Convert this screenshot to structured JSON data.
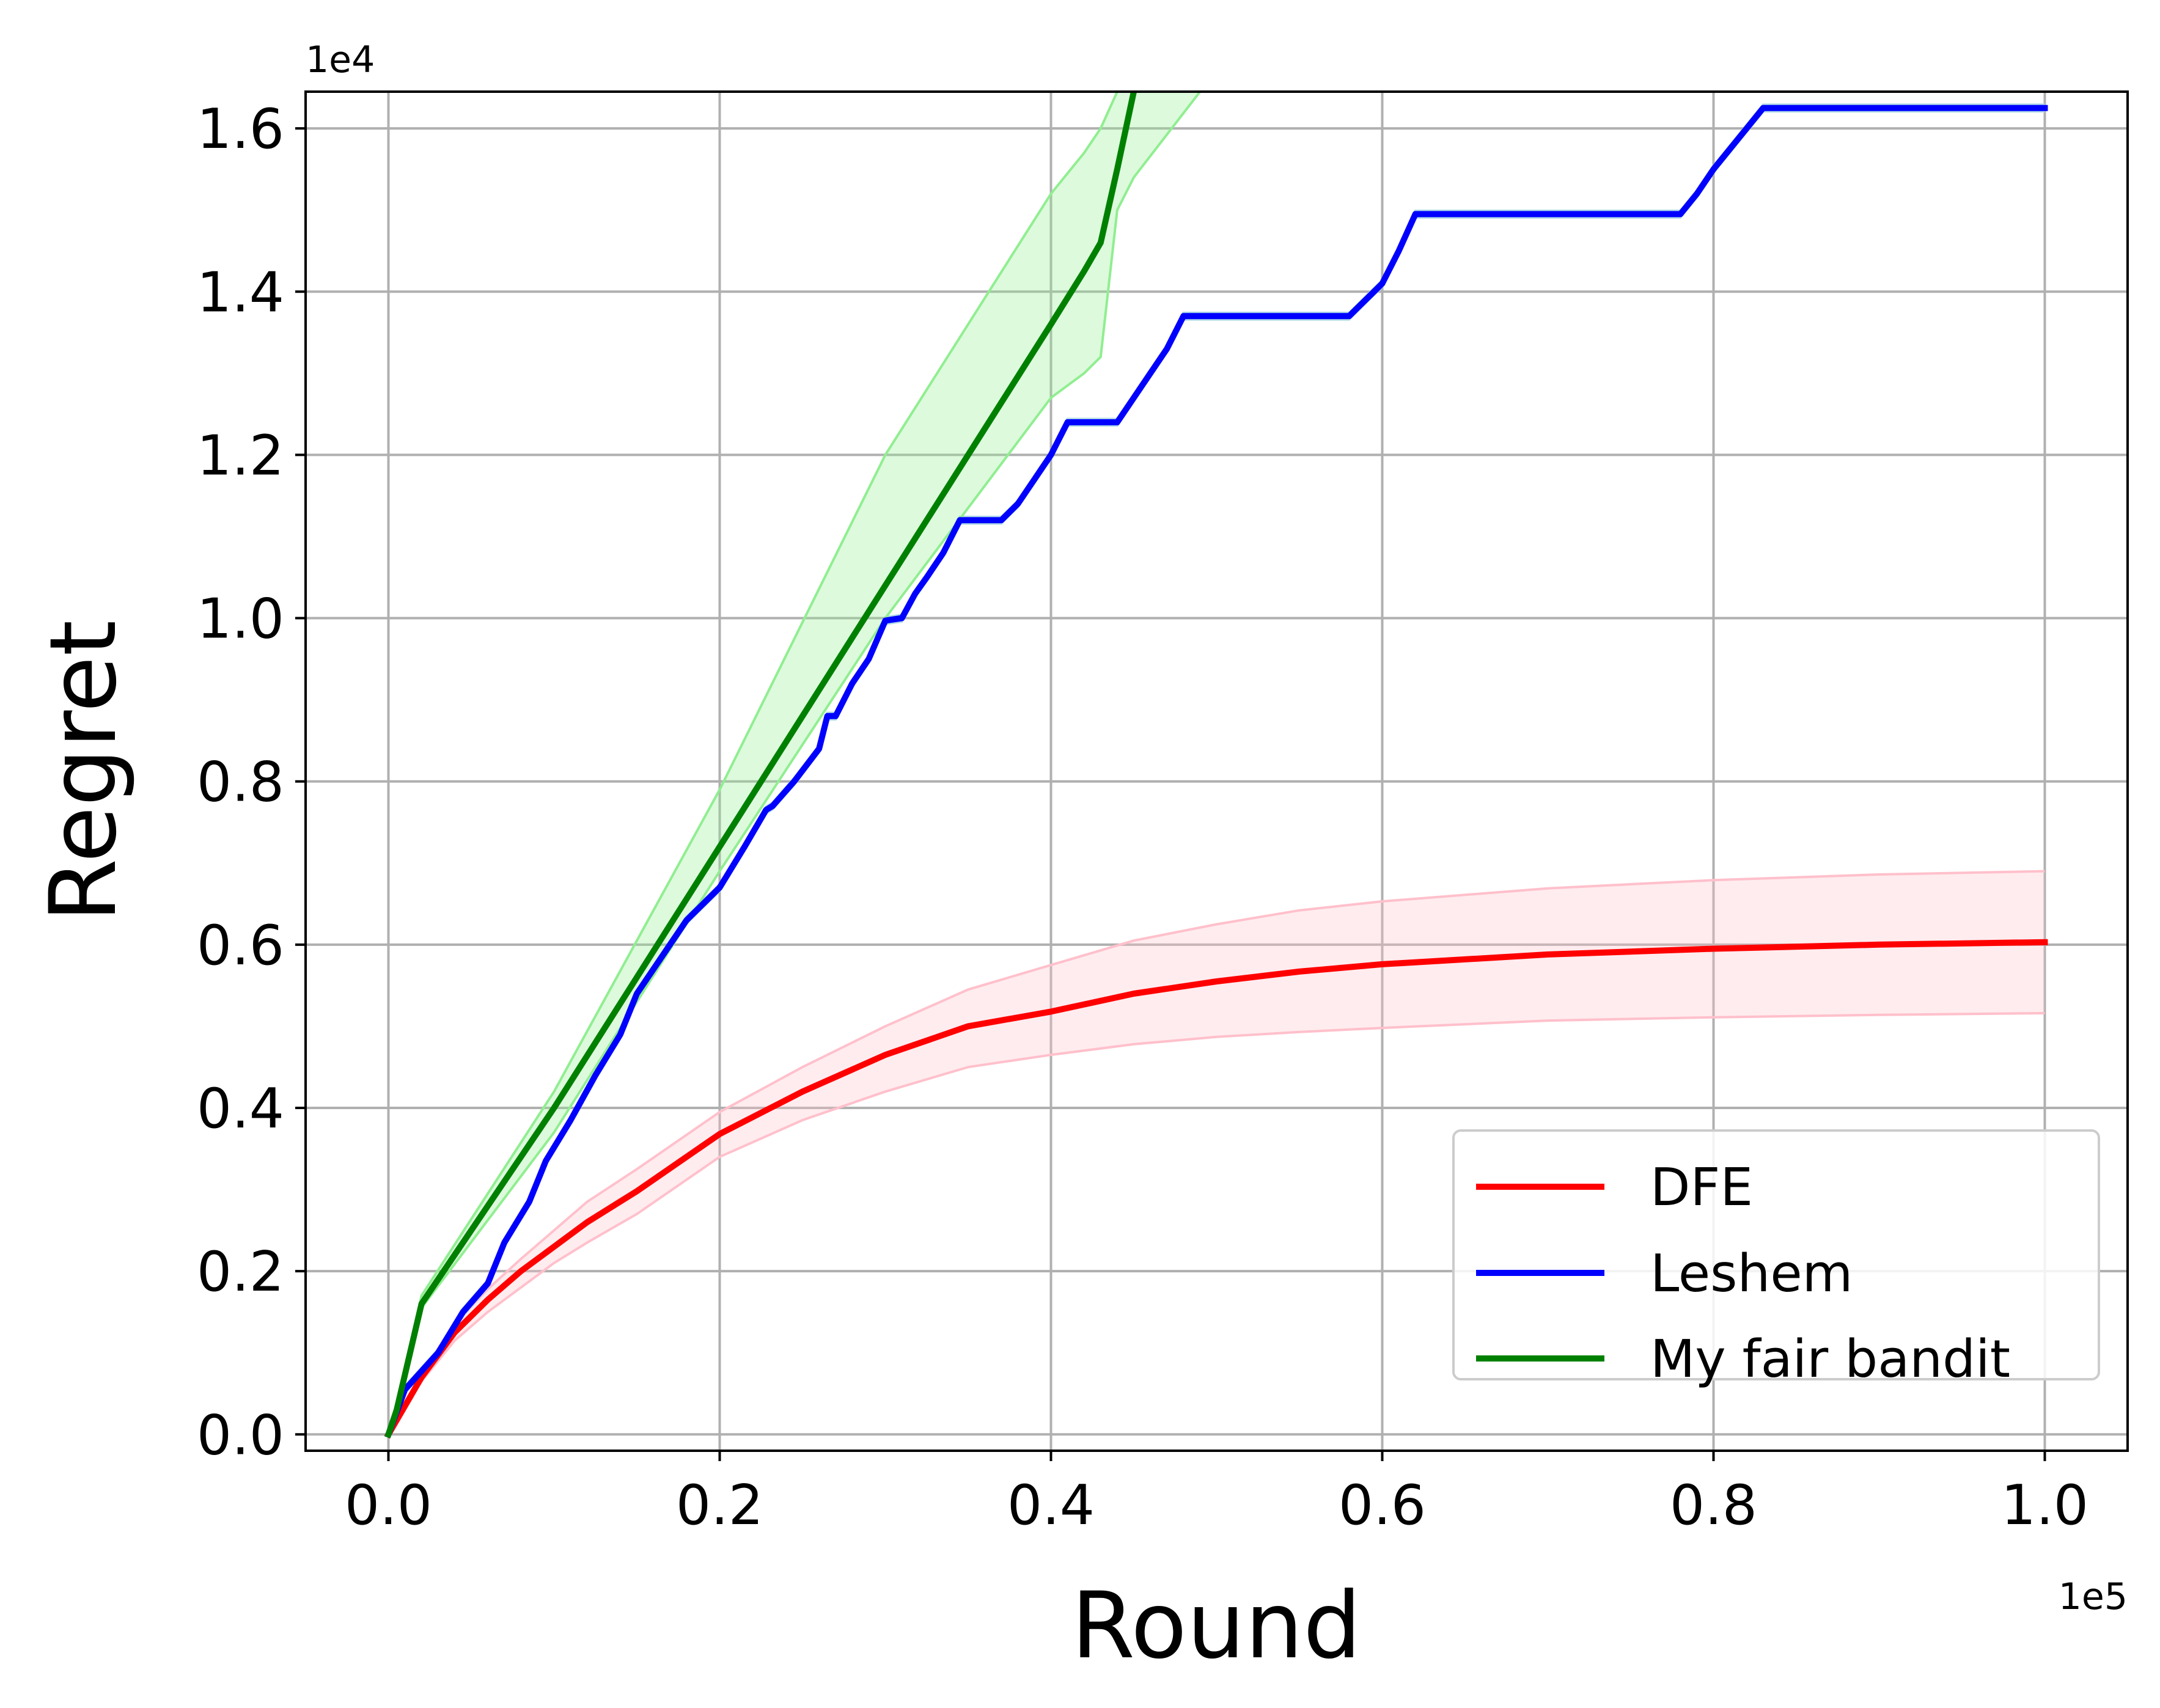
{
  "chart_data": {
    "type": "line",
    "title": "",
    "xlabel": "Round",
    "ylabel": "Regret",
    "x_multiplier_label": "1e5",
    "y_multiplier_label": "1e4",
    "xlim": [
      -0.05,
      1.05
    ],
    "ylim": [
      -0.02,
      1.645
    ],
    "xticks": [
      0.0,
      0.2,
      0.4,
      0.6,
      0.8,
      1.0
    ],
    "xtick_labels": [
      "0.0",
      "0.2",
      "0.4",
      "0.6",
      "0.8",
      "1.0"
    ],
    "yticks": [
      0.0,
      0.2,
      0.4,
      0.6,
      0.8,
      1.0,
      1.2,
      1.4,
      1.6
    ],
    "ytick_labels": [
      "0.0",
      "0.2",
      "0.4",
      "0.6",
      "0.8",
      "1.0",
      "1.2",
      "1.4",
      "1.6"
    ],
    "grid": true,
    "legend_position": "lower-right",
    "series": [
      {
        "name": "DFE",
        "color": "#ff0000",
        "band_fill": "#ffc0cb",
        "band_edge": "#ffc0cb",
        "x": [
          0.0,
          0.02,
          0.04,
          0.06,
          0.08,
          0.1,
          0.12,
          0.15,
          0.2,
          0.25,
          0.3,
          0.35,
          0.4,
          0.45,
          0.5,
          0.55,
          0.6,
          0.7,
          0.8,
          0.9,
          1.0
        ],
        "y": [
          0.0,
          0.07,
          0.125,
          0.165,
          0.2,
          0.23,
          0.26,
          0.298,
          0.368,
          0.42,
          0.465,
          0.5,
          0.518,
          0.54,
          0.555,
          0.567,
          0.576,
          0.588,
          0.595,
          0.6,
          0.603
        ],
        "lower": [
          0.0,
          0.065,
          0.115,
          0.15,
          0.18,
          0.21,
          0.235,
          0.27,
          0.34,
          0.385,
          0.42,
          0.45,
          0.465,
          0.478,
          0.487,
          0.493,
          0.498,
          0.507,
          0.511,
          0.514,
          0.516
        ],
        "upper": [
          0.0,
          0.075,
          0.135,
          0.178,
          0.215,
          0.25,
          0.285,
          0.325,
          0.395,
          0.45,
          0.5,
          0.545,
          0.575,
          0.605,
          0.625,
          0.642,
          0.653,
          0.669,
          0.679,
          0.686,
          0.69
        ]
      },
      {
        "name": "Leshem",
        "color": "#0000ff",
        "band_fill": "#add8e6",
        "band_edge": "#add8e6",
        "x": [
          0.0,
          0.01,
          0.03,
          0.045,
          0.06,
          0.07,
          0.085,
          0.095,
          0.11,
          0.125,
          0.14,
          0.15,
          0.16,
          0.17,
          0.18,
          0.19,
          0.2,
          0.215,
          0.228,
          0.232,
          0.245,
          0.26,
          0.265,
          0.27,
          0.28,
          0.29,
          0.3,
          0.31,
          0.318,
          0.325,
          0.335,
          0.345,
          0.355,
          0.36,
          0.37,
          0.38,
          0.39,
          0.4,
          0.41,
          0.415,
          0.42,
          0.43,
          0.44,
          0.45,
          0.46,
          0.47,
          0.48,
          0.49,
          0.5,
          0.55,
          0.58,
          0.6,
          0.61,
          0.62,
          0.7,
          0.78,
          0.79,
          0.8,
          0.82,
          0.83,
          1.0
        ],
        "y": [
          0.0,
          0.055,
          0.1,
          0.15,
          0.185,
          0.235,
          0.285,
          0.335,
          0.385,
          0.44,
          0.49,
          0.54,
          0.57,
          0.6,
          0.63,
          0.65,
          0.67,
          0.72,
          0.765,
          0.77,
          0.8,
          0.84,
          0.88,
          0.88,
          0.92,
          0.95,
          0.997,
          1.0,
          1.03,
          1.05,
          1.08,
          1.12,
          1.12,
          1.12,
          1.12,
          1.14,
          1.17,
          1.2,
          1.24,
          1.24,
          1.24,
          1.24,
          1.24,
          1.27,
          1.3,
          1.33,
          1.37,
          1.37,
          1.37,
          1.37,
          1.37,
          1.41,
          1.45,
          1.495,
          1.495,
          1.495,
          1.52,
          1.55,
          1.6,
          1.625,
          1.625
        ],
        "band_halfwidth": 0.004
      },
      {
        "name": "My fair bandit",
        "color": "#008000",
        "band_fill": "#90ee90",
        "band_edge": "#90ee90",
        "x": [
          0.0,
          0.005,
          0.02,
          0.1,
          0.2,
          0.3,
          0.4,
          0.42,
          0.43,
          0.44,
          0.45
        ],
        "y": [
          0.0,
          0.03,
          0.16,
          0.4,
          0.72,
          1.04,
          1.36,
          1.425,
          1.46,
          1.55,
          1.645
        ],
        "lower": [
          0.0,
          0.025,
          0.155,
          0.37,
          0.69,
          1.0,
          1.27,
          1.3,
          1.32,
          1.5,
          1.54
        ],
        "upper": [
          0.0,
          0.035,
          0.17,
          0.42,
          0.79,
          1.2,
          1.52,
          1.57,
          1.6,
          1.645,
          1.645
        ],
        "band_end_x": 0.49,
        "band_end_upper": 1.645,
        "band_end_lower": 1.645
      }
    ]
  }
}
